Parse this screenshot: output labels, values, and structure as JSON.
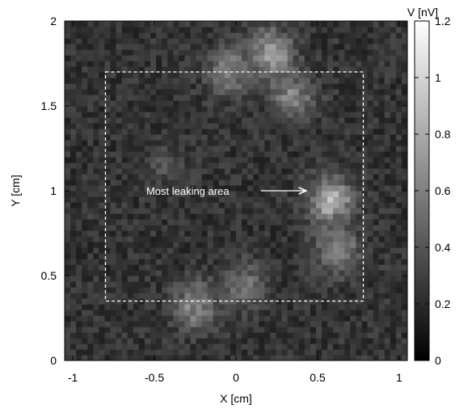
{
  "chart_data": {
    "type": "heatmap",
    "xlabel": "X [cm]",
    "ylabel": "Y [cm]",
    "xlim": [
      -1.05,
      1.05
    ],
    "ylim": [
      0,
      2
    ],
    "x_ticks": [
      -1,
      -0.5,
      0,
      0.5,
      1
    ],
    "x_tick_labels": [
      "-1",
      "-0.5",
      "0",
      "0.5",
      "1"
    ],
    "y_ticks": [
      0,
      0.5,
      1,
      1.5,
      2
    ],
    "y_tick_labels": [
      "0",
      "0.5",
      "1",
      "1.5",
      "2"
    ],
    "colorbar": {
      "label": "V [nV]",
      "range": [
        0,
        1.2
      ],
      "ticks": [
        0,
        0.2,
        0.4,
        0.6,
        0.8,
        1,
        1.2
      ],
      "tick_labels": [
        "0",
        "0.2",
        "0.4",
        "0.6",
        "0.8",
        "1",
        "1.2"
      ],
      "colormap": "grayscale",
      "low_color": "#000000",
      "high_color": "#ffffff"
    },
    "grid": false,
    "bright_regions": [
      {
        "x": 0.22,
        "y": 1.82,
        "value": 0.7
      },
      {
        "x": -0.05,
        "y": 1.7,
        "value": 0.55
      },
      {
        "x": 0.35,
        "y": 1.55,
        "value": 0.55
      },
      {
        "x": 0.58,
        "y": 0.95,
        "value": 0.75
      },
      {
        "x": 0.62,
        "y": 0.65,
        "value": 0.55
      },
      {
        "x": -0.25,
        "y": 0.32,
        "value": 0.6
      },
      {
        "x": 0.05,
        "y": 0.45,
        "value": 0.5
      },
      {
        "x": -0.45,
        "y": 1.15,
        "value": 0.35
      }
    ],
    "region_of_interest": {
      "shape": "dashed-rectangle",
      "x": [
        -0.8,
        0.78
      ],
      "y": [
        0.35,
        1.7
      ],
      "color": "#ffffff"
    },
    "annotation": {
      "text": "Most leaking area",
      "text_at": [
        -0.55,
        1.0
      ],
      "arrow_to": [
        0.43,
        1.0
      ],
      "color": "#ffffff"
    }
  }
}
